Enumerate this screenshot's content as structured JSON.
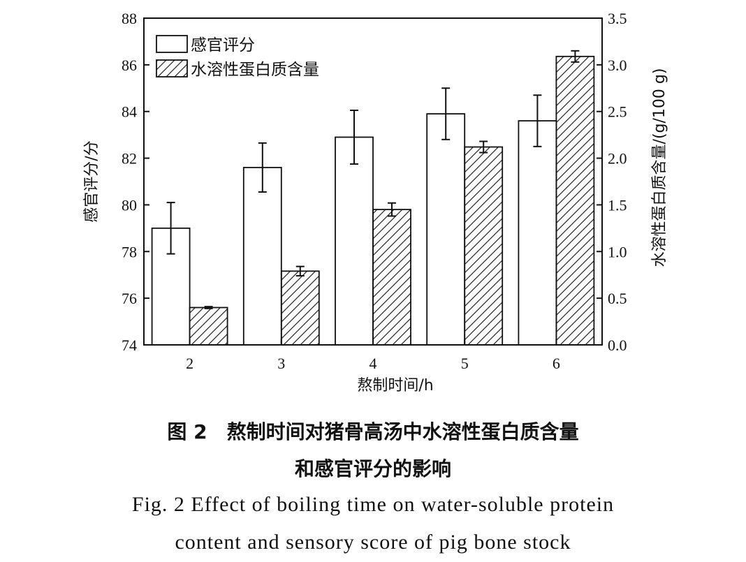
{
  "chart_data": {
    "type": "bar",
    "categories": [
      "2",
      "3",
      "4",
      "5",
      "6"
    ],
    "series": [
      {
        "name": "感官评分",
        "axis": "left",
        "fill": "white",
        "values": [
          79.0,
          81.6,
          82.9,
          83.9,
          83.6
        ],
        "errors": [
          1.1,
          1.05,
          1.15,
          1.1,
          1.1
        ]
      },
      {
        "name": "水溶性蛋白质含量",
        "axis": "right",
        "fill": "hatched",
        "values": [
          0.4,
          0.79,
          1.45,
          2.12,
          3.09
        ],
        "errors": [
          0.01,
          0.05,
          0.07,
          0.06,
          0.06
        ]
      }
    ],
    "xlabel": "熬制时间/h",
    "ylabel_left": "感官评分/分",
    "ylabel_right": "水溶性蛋白质含量/(g/100 g)",
    "ylim_left": [
      74,
      88
    ],
    "yticks_left": [
      "74",
      "76",
      "78",
      "80",
      "82",
      "84",
      "86",
      "88"
    ],
    "ylim_right": [
      0,
      3.5
    ],
    "yticks_right": [
      "0.0",
      "0.5",
      "1.0",
      "1.5",
      "2.0",
      "2.5",
      "3.0",
      "3.5"
    ],
    "legend_position": "top-left",
    "grid": false
  },
  "caption": {
    "cn_line1": "图 2　熬制时间对猪骨高汤中水溶性蛋白质含量",
    "cn_line2": "和感官评分的影响",
    "en_line1": "Fig. 2 Effect of boiling time on water-soluble protein",
    "en_line2": "content and sensory score of pig bone stock"
  }
}
